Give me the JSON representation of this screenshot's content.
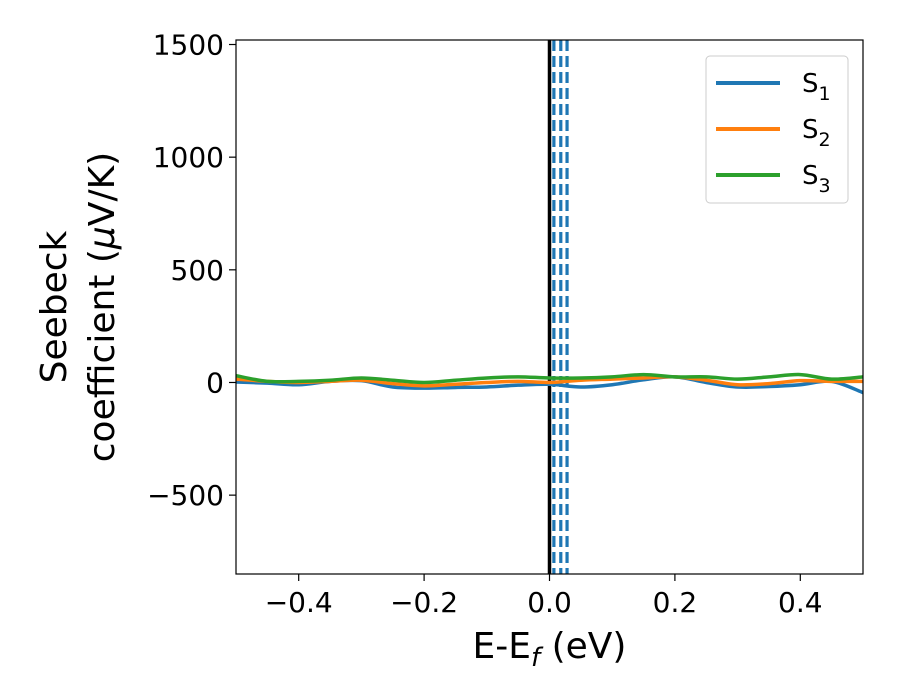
{
  "chart_data": {
    "type": "line",
    "xlabel": {
      "main": "E-E",
      "sub": "f",
      "unit": " (eV)"
    },
    "ylabel": {
      "line1": "Seebeck",
      "line2": "coefficient  (",
      "mu": "μ",
      "unit": "V/K)"
    },
    "xlim": [
      -0.5,
      0.5
    ],
    "ylim": [
      -850,
      1520
    ],
    "xticks": [
      -0.4,
      -0.2,
      0.0,
      0.2,
      0.4
    ],
    "xtick_labels": [
      "−0.4",
      "−0.2",
      "0.0",
      "0.2",
      "0.4"
    ],
    "yticks": [
      -500,
      0,
      500,
      1000,
      1500
    ],
    "ytick_labels": [
      "−500",
      "0",
      "500",
      "1000",
      "1500"
    ],
    "legend_position": "top-right",
    "vertical_solid_line": {
      "x": 0.0,
      "color": "#000000"
    },
    "vertical_dashed_lines": {
      "x": [
        0.007,
        0.018,
        0.028
      ],
      "color": "#1f77b4"
    },
    "series": [
      {
        "name": "S",
        "sub": "1",
        "color": "#1f77b4",
        "x": [
          -0.5,
          -0.45,
          -0.4,
          -0.35,
          -0.3,
          -0.25,
          -0.2,
          -0.15,
          -0.1,
          -0.05,
          0.0,
          0.05,
          0.1,
          0.15,
          0.2,
          0.25,
          0.3,
          0.35,
          0.4,
          0.45,
          0.5
        ],
        "y": [
          2,
          -3,
          -10,
          5,
          8,
          -20,
          -25,
          -22,
          -20,
          -12,
          -8,
          -20,
          -10,
          12,
          25,
          0,
          -20,
          -18,
          -10,
          5,
          -45
        ]
      },
      {
        "name": "S",
        "sub": "2",
        "color": "#ff7f0e",
        "x": [
          -0.5,
          -0.45,
          -0.4,
          -0.35,
          -0.3,
          -0.25,
          -0.2,
          -0.15,
          -0.1,
          -0.05,
          0.0,
          0.05,
          0.1,
          0.15,
          0.2,
          0.25,
          0.3,
          0.35,
          0.4,
          0.45,
          0.5
        ],
        "y": [
          15,
          5,
          0,
          5,
          10,
          -5,
          -15,
          -8,
          0,
          5,
          0,
          10,
          15,
          20,
          25,
          10,
          -10,
          -5,
          8,
          5,
          5
        ]
      },
      {
        "name": "S",
        "sub": "3",
        "color": "#2ca02c",
        "x": [
          -0.5,
          -0.45,
          -0.4,
          -0.35,
          -0.3,
          -0.25,
          -0.2,
          -0.15,
          -0.1,
          -0.05,
          0.0,
          0.05,
          0.1,
          0.15,
          0.2,
          0.25,
          0.3,
          0.35,
          0.4,
          0.45,
          0.5
        ],
        "y": [
          30,
          5,
          5,
          10,
          20,
          10,
          0,
          10,
          20,
          25,
          20,
          20,
          25,
          35,
          25,
          25,
          15,
          25,
          35,
          15,
          25
        ]
      }
    ]
  }
}
